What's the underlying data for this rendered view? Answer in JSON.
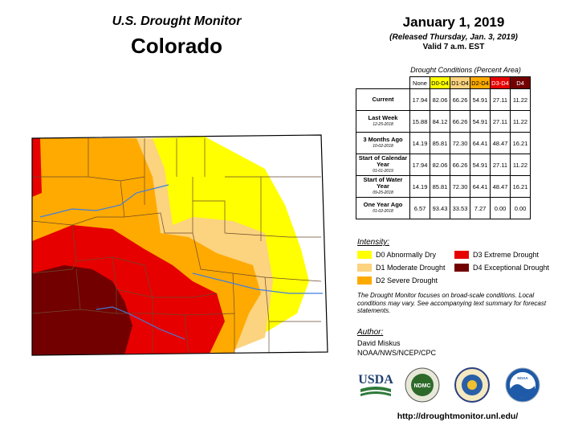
{
  "header": {
    "product": "U.S. Drought Monitor",
    "state": "Colorado",
    "date": "January 1, 2019",
    "released": "(Released Thursday, Jan. 3, 2019)",
    "valid": "Valid 7 a.m. EST"
  },
  "table": {
    "title": "Drought Conditions (Percent Area)",
    "columns": [
      "None",
      "D0-D4",
      "D1-D4",
      "D2-D4",
      "D3-D4",
      "D4"
    ],
    "column_colors": [
      "#ffffff",
      "#ffff00",
      "#fcd37f",
      "#ffaa00",
      "#e60000",
      "#730000"
    ],
    "rows": [
      {
        "label": "Current",
        "sublabel": "",
        "values": [
          "17.94",
          "82.06",
          "66.26",
          "54.91",
          "27.11",
          "11.22"
        ]
      },
      {
        "label": "Last Week",
        "sublabel": "12-25-2018",
        "values": [
          "15.88",
          "84.12",
          "66.26",
          "54.91",
          "27.11",
          "11.22"
        ]
      },
      {
        "label": "3 Months Ago",
        "sublabel": "10-02-2018",
        "values": [
          "14.19",
          "85.81",
          "72.30",
          "64.41",
          "48.47",
          "16.21"
        ]
      },
      {
        "label": "Start of Calendar Year",
        "sublabel": "01-01-2019",
        "values": [
          "17.94",
          "82.06",
          "66.26",
          "54.91",
          "27.11",
          "11.22"
        ]
      },
      {
        "label": "Start of Water Year",
        "sublabel": "09-25-2018",
        "values": [
          "14.19",
          "85.81",
          "72.30",
          "64.41",
          "48.47",
          "16.21"
        ]
      },
      {
        "label": "One Year Ago",
        "sublabel": "01-02-2018",
        "values": [
          "6.57",
          "93.43",
          "33.53",
          "7.27",
          "0.00",
          "0.00"
        ]
      }
    ]
  },
  "legend": {
    "title": "Intensity:",
    "items": [
      {
        "label": "D0 Abnormally Dry",
        "color": "#ffff00"
      },
      {
        "label": "D1 Moderate Drought",
        "color": "#fcd37f"
      },
      {
        "label": "D2 Severe Drought",
        "color": "#ffaa00"
      },
      {
        "label": "D3 Extreme Drought",
        "color": "#e60000"
      },
      {
        "label": "D4 Exceptional Drought",
        "color": "#730000"
      }
    ]
  },
  "note": "The Drought Monitor focuses on broad-scale conditions. Local conditions may vary. See accompanying text summary for forecast statements.",
  "author": {
    "label": "Author:",
    "name": "David Miskus",
    "org": "NOAA/NWS/NCEP/CPC"
  },
  "logos": {
    "usda": "USDA",
    "ndmc": "NDMC",
    "noaa": "NOAA"
  },
  "url": "http://droughtmonitor.unl.edu/"
}
